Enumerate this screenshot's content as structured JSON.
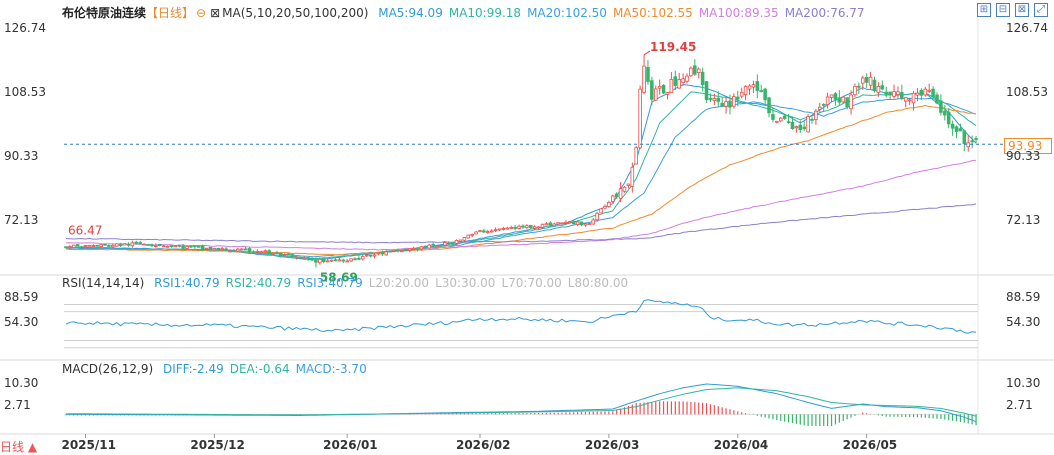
{
  "title": "布伦特原油连续",
  "period": "【日线】",
  "period_footer": "日线",
  "ma_legend": {
    "label": "MA(5,10,20,50,100,200)",
    "items": [
      {
        "text": "MA5:94.09",
        "color": "#2f9bd6"
      },
      {
        "text": "MA10:99.18",
        "color": "#2fb5a0"
      },
      {
        "text": "MA20:102.50",
        "color": "#3aa0e0"
      },
      {
        "text": "MA50:102.55",
        "color": "#f08a2a"
      },
      {
        "text": "MA100:89.35",
        "color": "#d080e0"
      },
      {
        "text": "MA200:76.77",
        "color": "#8a7fd0"
      }
    ]
  },
  "rsi_legend": {
    "label": "RSI(14,14,14)",
    "items": [
      {
        "text": "RSI1:40.79",
        "color": "#2f9bd6"
      },
      {
        "text": "RSI2:40.79",
        "color": "#2fb5a0"
      },
      {
        "text": "RSI3:40.79",
        "color": "#3aa0e0"
      },
      {
        "text": "L20:20.00",
        "color": "#bbbbbb"
      },
      {
        "text": "L30:30.00",
        "color": "#bbbbbb"
      },
      {
        "text": "L70:70.00",
        "color": "#bbbbbb"
      },
      {
        "text": "L80:80.00",
        "color": "#bbbbbb"
      }
    ]
  },
  "macd_legend": {
    "label": "MACD(26,12,9)",
    "items": [
      {
        "text": "DIFF:-2.49",
        "color": "#2f9bd6"
      },
      {
        "text": "DEA:-0.64",
        "color": "#2fb5a0"
      },
      {
        "text": "MACD:-3.70",
        "color": "#3aa0e0"
      }
    ]
  },
  "toolbar_icons": [
    "zoom-in-icon",
    "zoom-out-icon",
    "reset-icon",
    "fullscreen-icon"
  ],
  "last_price": "93.93",
  "chart_data": [
    {
      "type": "candlestick",
      "panel": "price",
      "ylim": [
        58.0,
        130.0
      ],
      "y_ticks": [
        "126.74",
        "108.53",
        "90.33",
        "72.13"
      ],
      "x_ticks": [
        "2025/11",
        "2025/12",
        "2026/01",
        "2026/02",
        "2026/03",
        "2026/04",
        "2026/05"
      ],
      "annotations": {
        "high": "119.45",
        "low": "58.69",
        "start": "66.47"
      },
      "last_price_value": 93.93,
      "keypoints": [
        [
          0,
          64.8
        ],
        [
          10,
          65.0
        ],
        [
          20,
          65.6
        ],
        [
          30,
          64.6
        ],
        [
          40,
          63.8
        ],
        [
          50,
          63.4
        ],
        [
          58,
          61.6
        ],
        [
          64,
          60.6
        ],
        [
          72,
          61.0
        ],
        [
          80,
          62.6
        ],
        [
          90,
          64.2
        ],
        [
          98,
          65.6
        ],
        [
          106,
          69.0
        ],
        [
          114,
          70.0
        ],
        [
          120,
          70.6
        ],
        [
          128,
          71.6
        ],
        [
          134,
          71.2
        ],
        [
          140,
          79.0
        ],
        [
          144,
          84.0
        ],
        [
          146,
          93.0
        ],
        [
          147,
          111.0
        ],
        [
          148,
          116.0
        ],
        [
          150,
          108.0
        ],
        [
          154,
          110.0
        ],
        [
          158,
          114.0
        ],
        [
          162,
          115.0
        ],
        [
          164,
          108.0
        ],
        [
          168,
          104.0
        ],
        [
          172,
          108.0
        ],
        [
          176,
          112.0
        ],
        [
          180,
          103.0
        ],
        [
          184,
          100.0
        ],
        [
          188,
          98.0
        ],
        [
          192,
          104.0
        ],
        [
          196,
          108.0
        ],
        [
          200,
          106.0
        ],
        [
          204,
          113.0
        ],
        [
          208,
          110.0
        ],
        [
          212,
          108.0
        ],
        [
          216,
          107.0
        ],
        [
          220,
          109.5
        ],
        [
          224,
          104.0
        ],
        [
          226,
          99.0
        ],
        [
          228,
          97.0
        ],
        [
          231,
          94.5
        ],
        [
          233,
          93.93
        ]
      ],
      "ma_lines": {
        "MA5": {
          "color": "#2f9bd6",
          "keypoints": [
            [
              0,
              64.6
            ],
            [
              40,
              63.6
            ],
            [
              64,
              60.8
            ],
            [
              98,
              65.4
            ],
            [
              128,
              71.4
            ],
            [
              140,
              77.0
            ],
            [
              146,
              89.0
            ],
            [
              150,
              106.0
            ],
            [
              158,
              111.0
            ],
            [
              164,
              110.0
            ],
            [
              172,
              106.0
            ],
            [
              180,
              105.0
            ],
            [
              188,
              100.0
            ],
            [
              196,
              106.0
            ],
            [
              204,
              110.0
            ],
            [
              212,
              108.0
            ],
            [
              220,
              108.5
            ],
            [
              226,
              103.0
            ],
            [
              233,
              94.09
            ]
          ]
        },
        "MA10": {
          "color": "#2fb5a0",
          "keypoints": [
            [
              0,
              64.4
            ],
            [
              40,
              63.6
            ],
            [
              64,
              61.2
            ],
            [
              98,
              65.0
            ],
            [
              128,
              71.0
            ],
            [
              140,
              75.0
            ],
            [
              146,
              84.0
            ],
            [
              152,
              100.0
            ],
            [
              160,
              109.0
            ],
            [
              170,
              107.0
            ],
            [
              180,
              104.0
            ],
            [
              188,
              101.0
            ],
            [
              196,
              104.0
            ],
            [
              204,
              108.0
            ],
            [
              212,
              108.0
            ],
            [
              220,
              108.5
            ],
            [
              226,
              105.0
            ],
            [
              233,
              99.18
            ]
          ]
        },
        "MA20": {
          "color": "#3aa0e0",
          "keypoints": [
            [
              0,
              64.2
            ],
            [
              40,
              63.8
            ],
            [
              64,
              61.8
            ],
            [
              98,
              64.6
            ],
            [
              128,
              70.4
            ],
            [
              140,
              73.0
            ],
            [
              148,
              80.0
            ],
            [
              156,
              96.0
            ],
            [
              164,
              104.0
            ],
            [
              176,
              106.0
            ],
            [
              186,
              104.0
            ],
            [
              194,
              102.0
            ],
            [
              204,
              106.0
            ],
            [
              214,
              107.0
            ],
            [
              222,
              107.0
            ],
            [
              233,
              102.5
            ]
          ]
        },
        "MA50": {
          "color": "#f08a2a",
          "keypoints": [
            [
              0,
              64.0
            ],
            [
              40,
              63.4
            ],
            [
              70,
              62.4
            ],
            [
              98,
              64.2
            ],
            [
              128,
              68.2
            ],
            [
              140,
              70.0
            ],
            [
              150,
              74.0
            ],
            [
              160,
              82.0
            ],
            [
              170,
              88.0
            ],
            [
              180,
              92.0
            ],
            [
              190,
              95.0
            ],
            [
              200,
              99.0
            ],
            [
              210,
              103.0
            ],
            [
              220,
              105.0
            ],
            [
              233,
              102.55
            ]
          ]
        },
        "MA100": {
          "color": "#d080e0",
          "keypoints": [
            [
              0,
              65.8
            ],
            [
              40,
              64.8
            ],
            [
              80,
              63.8
            ],
            [
              110,
              65.0
            ],
            [
              138,
              66.4
            ],
            [
              150,
              68.5
            ],
            [
              160,
              72.0
            ],
            [
              176,
              76.0
            ],
            [
              190,
              79.0
            ],
            [
              204,
              82.0
            ],
            [
              218,
              86.0
            ],
            [
              233,
              89.35
            ]
          ]
        },
        "MA200": {
          "color": "#8a7fd0",
          "keypoints": [
            [
              0,
              67.0
            ],
            [
              40,
              66.4
            ],
            [
              80,
              65.8
            ],
            [
              120,
              66.2
            ],
            [
              148,
              67.0
            ],
            [
              160,
              69.0
            ],
            [
              180,
              71.5
            ],
            [
              200,
              73.5
            ],
            [
              220,
              75.5
            ],
            [
              233,
              76.77
            ]
          ]
        }
      }
    },
    {
      "type": "line",
      "panel": "rsi",
      "ylim": [
        10,
        100
      ],
      "y_ticks": [
        "88.59",
        "54.30"
      ],
      "levels": [
        20,
        30,
        70,
        80
      ],
      "keypoints": [
        [
          0,
          55.0
        ],
        [
          20,
          52.0
        ],
        [
          40,
          51.0
        ],
        [
          60,
          46.0
        ],
        [
          70,
          43.0
        ],
        [
          80,
          48.0
        ],
        [
          96,
          54.0
        ],
        [
          106,
          60.0
        ],
        [
          114,
          60.0
        ],
        [
          126,
          58.0
        ],
        [
          134,
          56.0
        ],
        [
          140,
          64.0
        ],
        [
          146,
          72.0
        ],
        [
          148,
          85.0
        ],
        [
          150,
          84.0
        ],
        [
          156,
          82.0
        ],
        [
          162,
          76.0
        ],
        [
          166,
          60.0
        ],
        [
          176,
          58.0
        ],
        [
          184,
          52.0
        ],
        [
          192,
          52.0
        ],
        [
          198,
          55.0
        ],
        [
          204,
          58.0
        ],
        [
          210,
          54.0
        ],
        [
          218,
          52.0
        ],
        [
          224,
          48.0
        ],
        [
          230,
          43.0
        ],
        [
          233,
          40.79
        ]
      ]
    },
    {
      "type": "bar+line",
      "panel": "macd",
      "ylim": [
        -6,
        13
      ],
      "y_ticks": [
        "10.30",
        "2.71"
      ],
      "diff_keypoints": [
        [
          0,
          0.0
        ],
        [
          60,
          -0.4
        ],
        [
          100,
          0.6
        ],
        [
          120,
          1.0
        ],
        [
          140,
          1.8
        ],
        [
          146,
          4.5
        ],
        [
          152,
          7.0
        ],
        [
          158,
          9.0
        ],
        [
          164,
          10.3
        ],
        [
          172,
          9.5
        ],
        [
          182,
          7.0
        ],
        [
          190,
          4.0
        ],
        [
          196,
          2.0
        ],
        [
          204,
          3.5
        ],
        [
          210,
          2.6
        ],
        [
          218,
          2.2
        ],
        [
          224,
          1.2
        ],
        [
          230,
          -1.0
        ],
        [
          233,
          -2.49
        ]
      ],
      "dea_keypoints": [
        [
          0,
          0.2
        ],
        [
          60,
          -0.2
        ],
        [
          100,
          0.4
        ],
        [
          120,
          0.8
        ],
        [
          140,
          1.3
        ],
        [
          146,
          2.6
        ],
        [
          152,
          4.8
        ],
        [
          158,
          6.8
        ],
        [
          164,
          8.4
        ],
        [
          172,
          9.0
        ],
        [
          182,
          8.0
        ],
        [
          190,
          6.0
        ],
        [
          196,
          4.0
        ],
        [
          204,
          3.2
        ],
        [
          210,
          3.0
        ],
        [
          218,
          2.7
        ],
        [
          224,
          2.0
        ],
        [
          230,
          0.4
        ],
        [
          233,
          -0.64
        ]
      ]
    }
  ]
}
